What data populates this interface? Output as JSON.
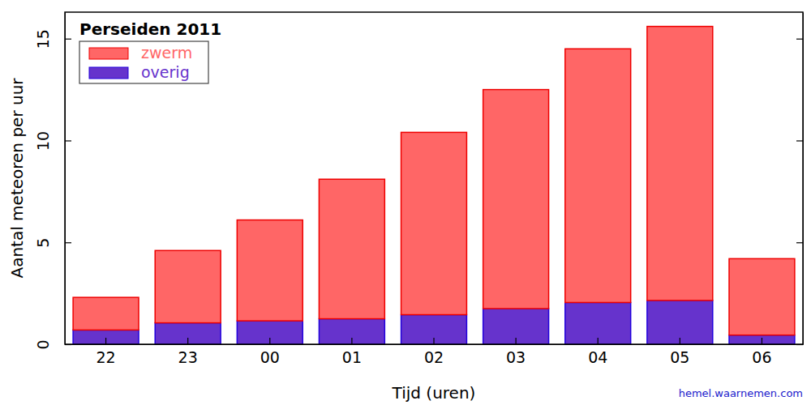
{
  "chart_data": {
    "type": "bar",
    "stacked": true,
    "title": "Perseiden 2011",
    "x_label": "Tijd (uren)",
    "y_label": "Aantal meteoren per uur",
    "annotations": [
      "hemel.waarnemen.com"
    ],
    "categories": [
      "22",
      "23",
      "00",
      "01",
      "02",
      "03",
      "04",
      "05",
      "06"
    ],
    "series": [
      {
        "name": "overig",
        "color": "#6633cc",
        "values": [
          0.7,
          1.05,
          1.15,
          1.25,
          1.45,
          1.75,
          2.05,
          2.15,
          0.45
        ]
      },
      {
        "name": "zwerm",
        "color": "#ff6666",
        "values": [
          1.6,
          3.55,
          4.95,
          6.85,
          8.95,
          10.75,
          12.45,
          13.45,
          3.75
        ]
      }
    ],
    "ylim": [
      0,
      16.3
    ],
    "yticks": [
      0,
      5,
      10,
      15
    ],
    "legend": "upper left",
    "grid": false
  }
}
